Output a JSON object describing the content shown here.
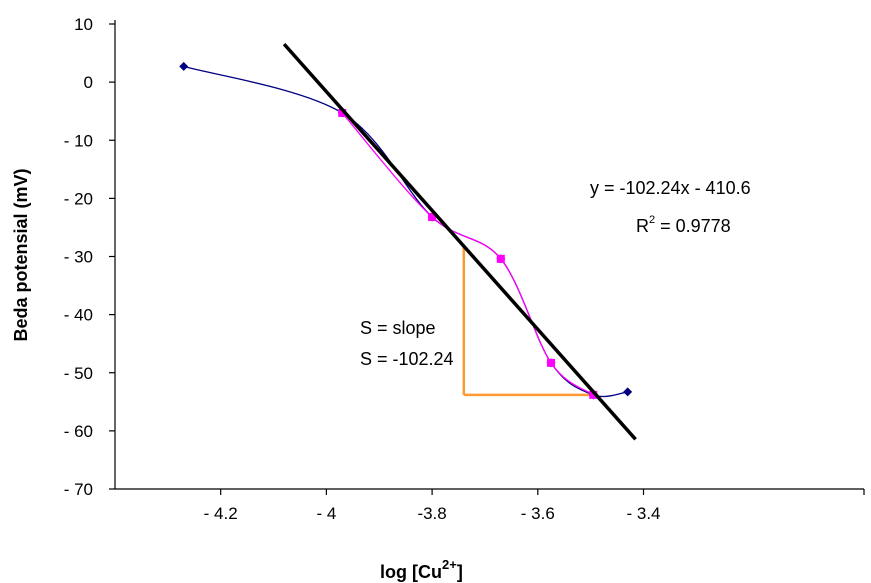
{
  "chart_data": {
    "type": "scatter",
    "title": "",
    "xlabel": "log [Cu",
    "xlabel_superscript": "2+",
    "xlabel_suffix": "]",
    "ylabel": "Beda potensial (mV)",
    "xlim": [
      -4.4,
      -3.25
    ],
    "ylim": [
      -70,
      10
    ],
    "x_ticks": [
      -4.2,
      -4,
      -3.8,
      -3.6,
      -3.4
    ],
    "x_tick_labels": [
      "- 4.2",
      "- 4",
      "-3.8",
      "- 3.6",
      "- 3.4"
    ],
    "y_ticks": [
      10,
      0,
      -10,
      -20,
      -30,
      -40,
      -50,
      -60,
      -70
    ],
    "y_tick_labels": [
      "10",
      "0",
      "- 10",
      "- 20",
      "- 30",
      "- 40",
      "- 50",
      "- 60",
      "- 70"
    ],
    "grid": false,
    "legend": "none",
    "series": [
      {
        "color": "#000080",
        "marker": "diamond",
        "x": [
          -4.27,
          -3.97,
          -3.8,
          -3.67,
          -3.575,
          -3.495,
          -3.43
        ],
        "y": [
          2.7,
          -5.3,
          -23.2,
          -30.4,
          -48.3,
          -53.8,
          -53.3
        ]
      },
      {
        "color": "#ff00ff",
        "marker": "square",
        "x": [
          -3.97,
          -3.8,
          -3.67,
          -3.575,
          -3.495
        ],
        "y": [
          -5.3,
          -23.2,
          -30.4,
          -48.3,
          -53.8
        ]
      }
    ],
    "trendline": {
      "color": "#000000",
      "slope": -102.24,
      "intercept": -410.6,
      "x_range": [
        -4.08,
        -3.415
      ]
    },
    "slope_triangle": {
      "color": "#ff9933",
      "x": [
        -3.74,
        -3.49
      ],
      "y_top": -28.2,
      "y_bottom": -53.8
    },
    "annotations": {
      "equation": "y = -102.24x - 410.6",
      "r2_prefix": "R",
      "r2_sup": "2",
      "r2_value": " = 0.9778",
      "slope_def": "S = slope",
      "slope_value": "S = -102.24"
    }
  }
}
